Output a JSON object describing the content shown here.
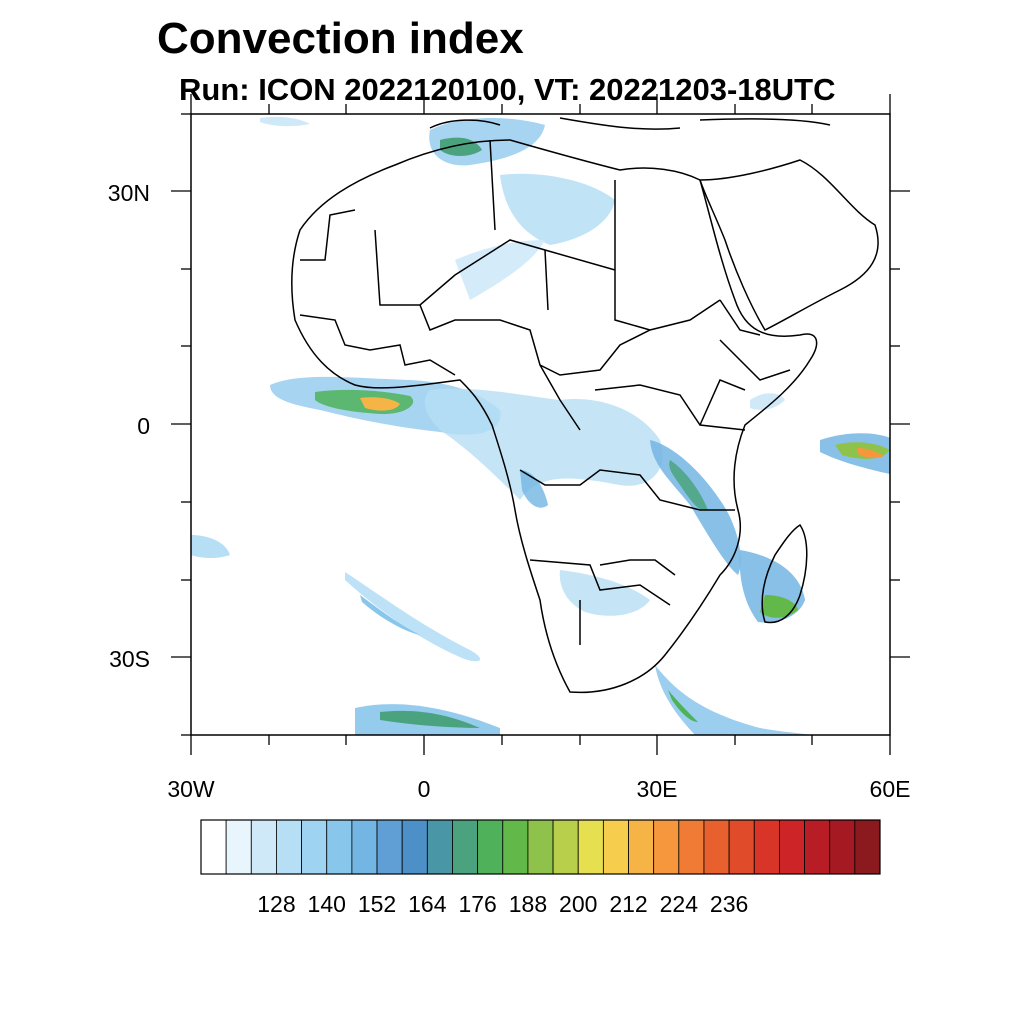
{
  "title": "Convection index",
  "subtitle": "Run: ICON 2022120100,  VT: 20221203-18UTC",
  "map": {
    "lat_labels": [
      "30N",
      "0",
      "30S"
    ],
    "lon_labels": [
      "30W",
      "0",
      "30E",
      "60E"
    ],
    "lon_range": [
      -30,
      60
    ],
    "lat_range": [
      -40,
      40
    ]
  },
  "colorbar": {
    "labels": [
      "128",
      "140",
      "152",
      "164",
      "176",
      "188",
      "200",
      "212",
      "224",
      "236"
    ],
    "colors": [
      "#ffffff",
      "#e8f5fc",
      "#cfe9f8",
      "#b6def5",
      "#9fd3f2",
      "#89c6ec",
      "#73b5e3",
      "#5f9fd6",
      "#4d8fc7",
      "#4896a6",
      "#4aa37e",
      "#4fb15a",
      "#63b84a",
      "#8ec24b",
      "#b8cf4c",
      "#e6e050",
      "#f6cd4d",
      "#f7b446",
      "#f6973d",
      "#f07b34",
      "#e8602d",
      "#e04b2a",
      "#d83528",
      "#cc2427",
      "#b81c25",
      "#a41922",
      "#8b1a1e"
    ]
  }
}
